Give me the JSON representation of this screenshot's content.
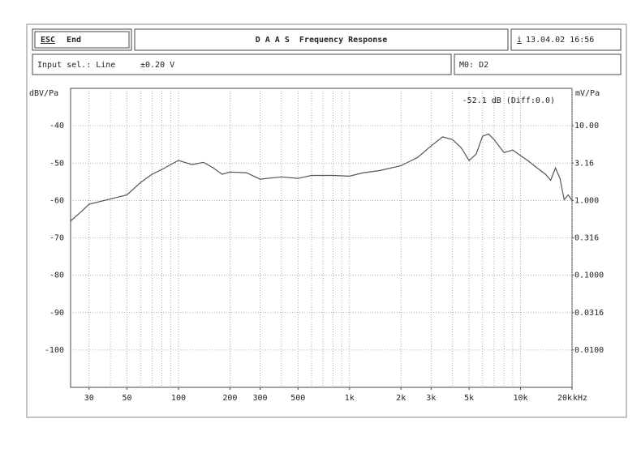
{
  "header": {
    "esc": "ESC",
    "esc_action": "End",
    "title": "D A A S  Frequency Response",
    "info": "i",
    "datetime": "13.04.02 16:56"
  },
  "status": {
    "input": "Input sel.: Line",
    "range": "±0.20 V",
    "marker": "M0: D2"
  },
  "chart_data": {
    "type": "line",
    "ylabel": "dBV/Pa",
    "y2label": "mV/Pa",
    "xunit": "kHz",
    "readout": "-52.1 dB (Diff:0.0)",
    "x": [
      23.4,
      27,
      30,
      40,
      50,
      60,
      70,
      80,
      90,
      100,
      120,
      140,
      160,
      180,
      200,
      250,
      300,
      400,
      500,
      600,
      800,
      1000,
      1200,
      1500,
      2000,
      2500,
      3000,
      3500,
      4000,
      4500,
      5000,
      5500,
      6000,
      6500,
      7000,
      8000,
      9000,
      10000,
      11000,
      12500,
      14000,
      15000,
      16000,
      17000,
      18000,
      19000,
      20000
    ],
    "values": [
      -65.5,
      -63,
      -61,
      -59.6,
      -58.5,
      -55.2,
      -53,
      -51.7,
      -50.4,
      -49.3,
      -50.4,
      -49.8,
      -51.3,
      -53,
      -52.4,
      -52.6,
      -54.3,
      -53.7,
      -54.1,
      -53.3,
      -53.3,
      -53.5,
      -52.6,
      -52,
      -50.7,
      -48.5,
      -45.4,
      -43,
      -43.7,
      -45.9,
      -49.3,
      -47.6,
      -42.8,
      -42.2,
      -43.7,
      -47.2,
      -46.5,
      -48,
      -49.3,
      -51.3,
      -53,
      -54.6,
      -51.3,
      -54.1,
      -59.8,
      -58.5,
      -60
    ],
    "color": "#555555",
    "xscale": "log",
    "xlim": [
      23.4,
      20000
    ],
    "xticks": [
      30,
      50,
      100,
      200,
      300,
      500,
      {
        "value": 1000,
        "label": "1k"
      },
      {
        "value": 2000,
        "label": "2k"
      },
      {
        "value": 3000,
        "label": "3k"
      },
      {
        "value": 5000,
        "label": "5k"
      },
      {
        "value": 10000,
        "label": "10k"
      },
      {
        "value": 20000,
        "label": "20k"
      }
    ],
    "xgrid": [
      30,
      40,
      50,
      60,
      70,
      80,
      90,
      100,
      200,
      300,
      400,
      500,
      600,
      700,
      800,
      900,
      1000,
      2000,
      3000,
      4000,
      5000,
      6000,
      7000,
      8000,
      9000,
      10000,
      20000
    ],
    "ylim": [
      -110,
      -30
    ],
    "yticks": [
      -40,
      -50,
      -60,
      -70,
      -80,
      -90,
      -100
    ],
    "y2scale": "log",
    "y2lim": [
      0.00316,
      31.6
    ],
    "y2ticks": [
      {
        "value": 10,
        "label": "10.00"
      },
      3.16,
      {
        "value": 1,
        "label": "1.000"
      },
      0.316,
      {
        "value": 0.1,
        "label": "0.1000"
      },
      0.0316,
      {
        "value": 0.01,
        "label": "0.0100"
      }
    ],
    "grid": true
  }
}
